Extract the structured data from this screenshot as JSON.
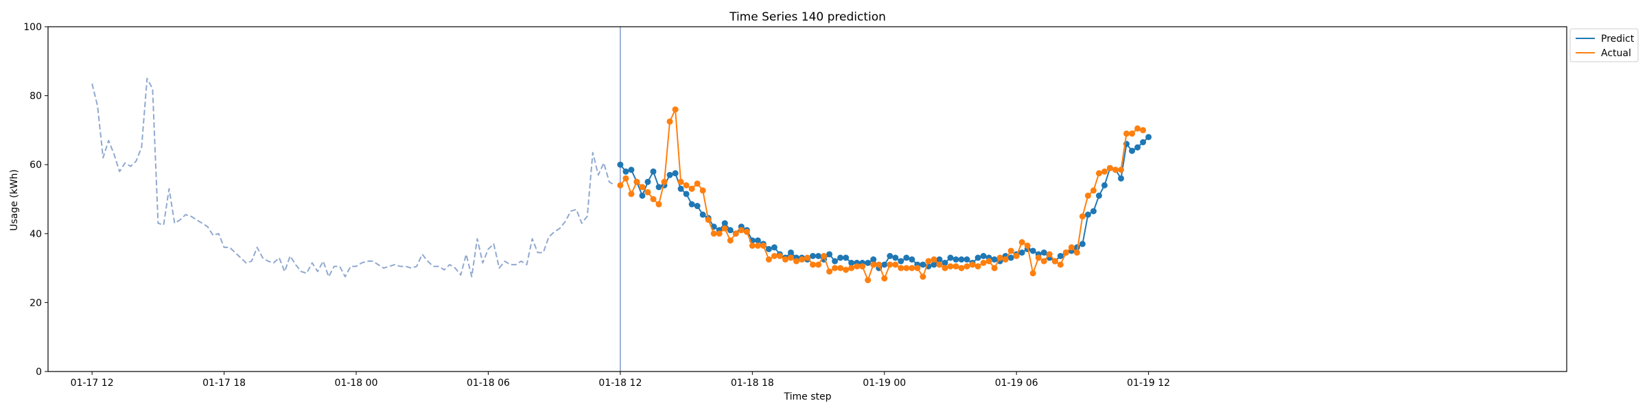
{
  "chart_data": {
    "type": "line",
    "title": "Time Series 140 prediction",
    "xlabel": "Time step",
    "ylabel": "Usage (kWh)",
    "ylim": [
      0,
      100
    ],
    "yticks": [
      0,
      20,
      40,
      60,
      80,
      100
    ],
    "x_unit_hours_per_step": 0.5,
    "xlim_steps": [
      -4,
      134
    ],
    "xticks": [
      {
        "step": 0,
        "label": "01-17 12"
      },
      {
        "step": 12,
        "label": "01-17 18"
      },
      {
        "step": 24,
        "label": "01-18 00"
      },
      {
        "step": 36,
        "label": "01-18 06"
      },
      {
        "step": 48,
        "label": "01-18 12"
      },
      {
        "step": 60,
        "label": "01-18 18"
      },
      {
        "step": 72,
        "label": "01-19 00"
      },
      {
        "step": 84,
        "label": "01-19 06"
      },
      {
        "step": 96,
        "label": "01-19 12"
      }
    ],
    "forecast_start_step": 48,
    "legend": {
      "position": "top-right",
      "entries": [
        "Predict",
        "Actual"
      ]
    },
    "colors": {
      "history": "#8fa8cf",
      "predict": "#1f77b4",
      "actual": "#ff7f0e",
      "divider": "#7e97cc"
    },
    "series": [
      {
        "name": "",
        "role": "history",
        "style": "dashed",
        "start_step": 0,
        "values": [
          83.5,
          77,
          62,
          67,
          63,
          58,
          60.5,
          59.5,
          61,
          65,
          85,
          82,
          43,
          42.5,
          53,
          43,
          44,
          45.5,
          45,
          44,
          43,
          42,
          39.5,
          40,
          36,
          36,
          34.5,
          33,
          31.5,
          32,
          36,
          33,
          32,
          31.5,
          33,
          29,
          33.5,
          31,
          29,
          28.5,
          31.5,
          29,
          32,
          27.5,
          30.5,
          30.5,
          27.5,
          30.5,
          30.5,
          31.5,
          32,
          32,
          31,
          30,
          30.5,
          31,
          30.5,
          30.5,
          30,
          30.5,
          34,
          32,
          30.5,
          30.5,
          29.5,
          31,
          30,
          28,
          34,
          27.5,
          38.5,
          31.5,
          35.5,
          37,
          30,
          32,
          31,
          31,
          32,
          31,
          38.5,
          34.5,
          34.5,
          39,
          40.5,
          41.5,
          43.5,
          46.5,
          47,
          43,
          45,
          63.5,
          57,
          60.5,
          55,
          54
        ]
      },
      {
        "name": "Predict",
        "role": "predict",
        "style": "solid-markers",
        "start_step": 48,
        "values": [
          60,
          58,
          58.5,
          55,
          51,
          55,
          58,
          53.5,
          54,
          57,
          57.5,
          53,
          51.5,
          48.5,
          48,
          45.5,
          44.5,
          42,
          41,
          43,
          41,
          40,
          42,
          41,
          38,
          38,
          37,
          35.5,
          36,
          34,
          33,
          34.5,
          33,
          33,
          32.5,
          33.5,
          33.5,
          32.5,
          34,
          32,
          33,
          33,
          31.5,
          31.5,
          31.5,
          31.5,
          32.5,
          30,
          31,
          33.5,
          33,
          32,
          33,
          32.5,
          31,
          31,
          30.5,
          31,
          32.5,
          31.5,
          33,
          32.5,
          32.5,
          32.5,
          31.5,
          33,
          33.5,
          33,
          32.5,
          32,
          33.5,
          33,
          34,
          34.5,
          35.5,
          35,
          34,
          34.5,
          33,
          32,
          33.5,
          34.5,
          35,
          36,
          37,
          45.5,
          46.5,
          51,
          54,
          59,
          58.5,
          56,
          66,
          64,
          65,
          66.5,
          68
        ]
      },
      {
        "name": "Actual",
        "role": "actual",
        "style": "solid-markers",
        "start_step": 48,
        "values": [
          54,
          56,
          51.5,
          55,
          53.5,
          52,
          50,
          48.5,
          55,
          72.5,
          76,
          55,
          54,
          53,
          54.5,
          52.5,
          44,
          40,
          40,
          41.5,
          38,
          40,
          41,
          40.5,
          36.5,
          36.5,
          36.5,
          32.5,
          33.5,
          33.5,
          32.5,
          33,
          32,
          32.5,
          33,
          31,
          31,
          33.5,
          29,
          30,
          30,
          29.5,
          30,
          30.5,
          30.5,
          26.5,
          31,
          31,
          27,
          31,
          31,
          30,
          30,
          30,
          30,
          27.5,
          32,
          32.5,
          31,
          30,
          30.5,
          30.5,
          30,
          30.5,
          31,
          30.5,
          31.5,
          32,
          30,
          33,
          32.5,
          35,
          33.5,
          37.5,
          36.5,
          28.5,
          33,
          32,
          34,
          32,
          31,
          34.5,
          36,
          34.5,
          45,
          51,
          52.5,
          57.5,
          58,
          59,
          58.5,
          58.5,
          69,
          69,
          70.5,
          70
        ]
      }
    ]
  }
}
